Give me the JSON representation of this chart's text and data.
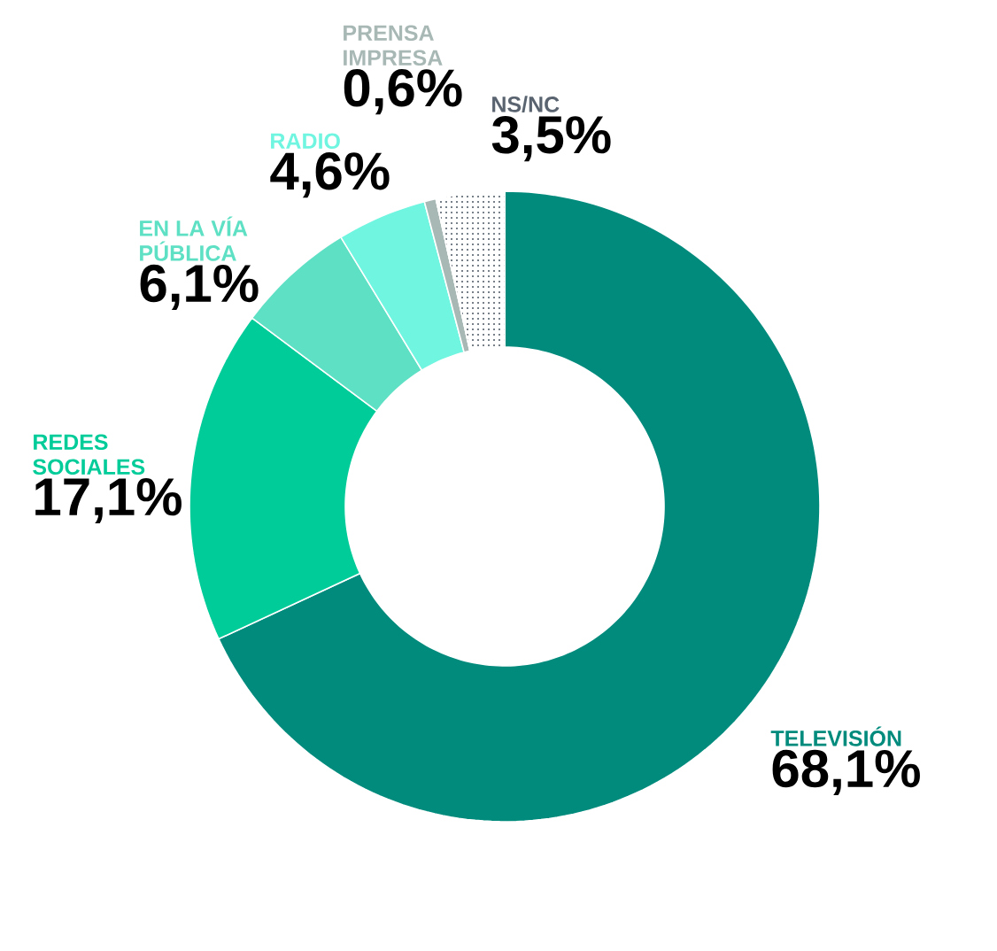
{
  "chart_data": {
    "type": "donut",
    "categories": [
      "TELEVISIÓN",
      "REDES SOCIALES",
      "EN LA VÍA PÚBLICA",
      "RADIO",
      "PRENSA IMPRESA",
      "NS/NC"
    ],
    "values": [
      68.1,
      17.1,
      6.1,
      4.6,
      0.6,
      3.5
    ],
    "colors": [
      "#008b7d",
      "#00cc9a",
      "#5ee0c4",
      "#6ff5e0",
      "#a8b8b5",
      "#ffffff"
    ],
    "value_labels": [
      "68,1%",
      "17,1%",
      "6,1%",
      "4,6%",
      "0,6%",
      "3,5%"
    ]
  }
}
